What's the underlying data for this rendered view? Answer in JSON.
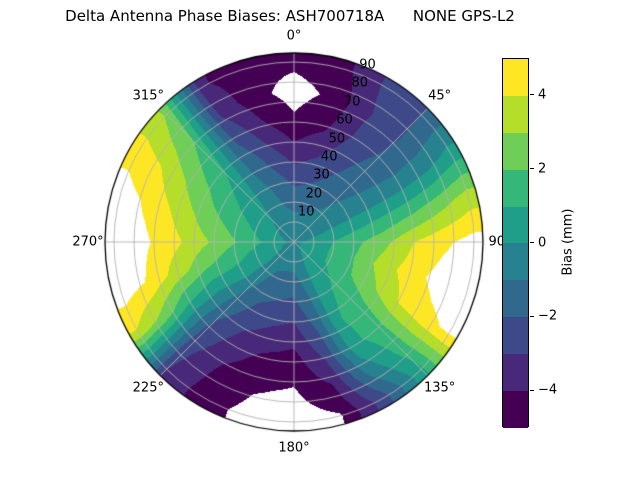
{
  "title": "Delta Antenna Phase Biases: ASH700718A      NONE GPS-L2",
  "chart_data": {
    "type": "polar_contour",
    "title": "Delta Antenna Phase Biases: ASH700718A      NONE GPS-L2",
    "orientation": "azimuth 0 at top, increasing clockwise",
    "radial_axis": "zenith angle in degrees, 0 at center, 90 at edge",
    "azimuth_ticks": [
      {
        "deg": 0,
        "label": "0°"
      },
      {
        "deg": 45,
        "label": "45°"
      },
      {
        "deg": 90,
        "label": "90°"
      },
      {
        "deg": 135,
        "label": "135°"
      },
      {
        "deg": 180,
        "label": "180°"
      },
      {
        "deg": 225,
        "label": "225°"
      },
      {
        "deg": 270,
        "label": "270°"
      },
      {
        "deg": 315,
        "label": "315°"
      }
    ],
    "radial_ticks": [
      {
        "value": 10,
        "label": "10"
      },
      {
        "value": 20,
        "label": "20"
      },
      {
        "value": 30,
        "label": "30"
      },
      {
        "value": 40,
        "label": "40"
      },
      {
        "value": 50,
        "label": "50"
      },
      {
        "value": 60,
        "label": "60"
      },
      {
        "value": 70,
        "label": "70"
      },
      {
        "value": 80,
        "label": "80"
      },
      {
        "value": 90,
        "label": "90"
      }
    ],
    "levels": {
      "min": -5,
      "max": 5,
      "step": 1
    },
    "band_colors": [
      "#440154",
      "#482878",
      "#3e4989",
      "#31688e",
      "#26828e",
      "#1f9e89",
      "#35b779",
      "#6ece58",
      "#b5de2b",
      "#fde725"
    ],
    "out_of_range_color": "#ffffff",
    "grid_color": "#b3b3b3",
    "grid": {
      "azimuth_deg": [
        0,
        15,
        30,
        45,
        60,
        75,
        90,
        105,
        120,
        135,
        150,
        165,
        180,
        195,
        210,
        225,
        240,
        255,
        270,
        285,
        300,
        315,
        330,
        345,
        360
      ],
      "zenith_deg": [
        0,
        15,
        30,
        45,
        60,
        75,
        90
      ],
      "bias_mm": [
        [
          -0.5,
          -1.0,
          -2.2,
          -3.6,
          -4.8,
          -5.4,
          -4.8
        ],
        [
          -0.5,
          -1.0,
          -2.0,
          -3.1,
          -4.2,
          -4.8,
          -4.4
        ],
        [
          -0.5,
          -0.9,
          -1.6,
          -2.3,
          -2.9,
          -3.1,
          -2.9
        ],
        [
          -0.45,
          -0.7,
          -1.1,
          -1.5,
          -1.9,
          -2.1,
          -2.0
        ],
        [
          -0.4,
          -0.5,
          -0.6,
          -0.7,
          -0.7,
          -0.4,
          0.3
        ],
        [
          -0.35,
          0.1,
          0.6,
          1.1,
          1.7,
          2.5,
          3.4
        ],
        [
          -0.3,
          0.7,
          1.7,
          2.7,
          4.0,
          4.8,
          5.4
        ],
        [
          -0.25,
          0.8,
          1.9,
          3.4,
          4.5,
          5.4,
          5.8
        ],
        [
          -0.2,
          0.8,
          1.8,
          2.8,
          4.0,
          4.7,
          5.2
        ],
        [
          -0.25,
          0.6,
          1.2,
          1.6,
          1.7,
          1.4,
          0.8
        ],
        [
          -0.3,
          0.3,
          0.7,
          0.9,
          0.6,
          -0.7,
          -2.4
        ],
        [
          -0.35,
          -0.5,
          -1.1,
          -1.9,
          -2.9,
          -4.1,
          -5.1
        ],
        [
          -0.4,
          -1.0,
          -2.2,
          -3.4,
          -4.5,
          -5.1,
          -5.6
        ],
        [
          -0.4,
          -1.0,
          -2.0,
          -3.1,
          -4.2,
          -4.9,
          -5.3
        ],
        [
          -0.4,
          -0.9,
          -1.7,
          -2.6,
          -3.5,
          -4.2,
          -4.6
        ],
        [
          -0.4,
          -0.4,
          -0.8,
          -1.5,
          -2.2,
          -2.7,
          -3.0
        ],
        [
          -0.35,
          0.4,
          0.6,
          0.4,
          1.0,
          2.6,
          3.9
        ],
        [
          -0.3,
          0.5,
          1.3,
          2.2,
          3.5,
          4.9,
          5.7
        ],
        [
          -0.3,
          0.9,
          2.1,
          3.2,
          4.3,
          5.2,
          5.7
        ],
        [
          -0.35,
          0.6,
          1.6,
          2.5,
          3.7,
          4.8,
          5.5
        ],
        [
          -0.4,
          0.3,
          1.0,
          1.8,
          2.8,
          3.9,
          4.6
        ],
        [
          -0.45,
          0.0,
          0.4,
          0.9,
          1.5,
          2.2,
          2.9
        ],
        [
          -0.5,
          -0.4,
          -0.7,
          -1.3,
          -2.2,
          -3.2,
          -3.9
        ],
        [
          -0.5,
          -0.8,
          -1.5,
          -2.6,
          -3.8,
          -4.7,
          -4.7
        ],
        [
          -0.5,
          -1.0,
          -2.2,
          -3.6,
          -4.8,
          -5.4,
          -4.8
        ]
      ]
    },
    "colorbar": {
      "label": "Bias (mm)",
      "ticks": [
        {
          "value": 4,
          "label": "4"
        },
        {
          "value": 2,
          "label": "2"
        },
        {
          "value": 0,
          "label": "0"
        },
        {
          "value": -2,
          "label": "−2"
        },
        {
          "value": -4,
          "label": "−4"
        }
      ]
    }
  }
}
